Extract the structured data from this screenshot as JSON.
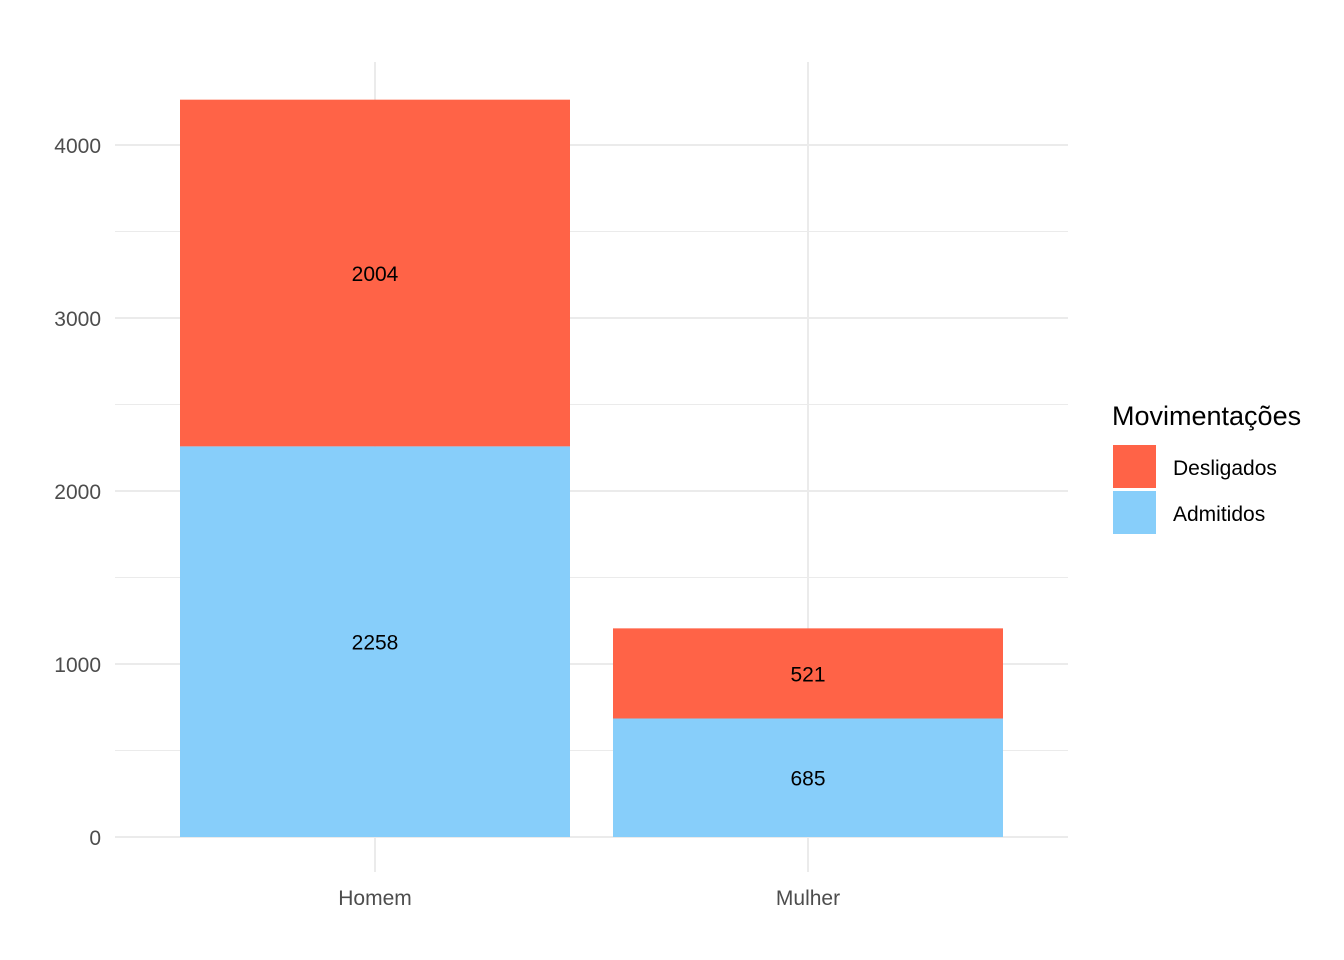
{
  "chart_data": {
    "type": "bar",
    "stacked": true,
    "categories": [
      "Homem",
      "Mulher"
    ],
    "series": [
      {
        "name": "Admitidos",
        "values": [
          2258,
          685
        ],
        "color": "#87CEFA"
      },
      {
        "name": "Desligados",
        "values": [
          2004,
          521
        ],
        "color": "#FF6347"
      }
    ],
    "title": "",
    "xlabel": "",
    "ylabel": "",
    "ylim": [
      0,
      4262
    ],
    "yticks": [
      0,
      1000,
      2000,
      3000,
      4000
    ],
    "grid": true,
    "legend": {
      "title": "Movimentações",
      "position": "right",
      "order": [
        "Desligados",
        "Admitidos"
      ]
    },
    "colors": {
      "grid": "#ebebeb",
      "tick_text": "#4d4d4d"
    }
  }
}
